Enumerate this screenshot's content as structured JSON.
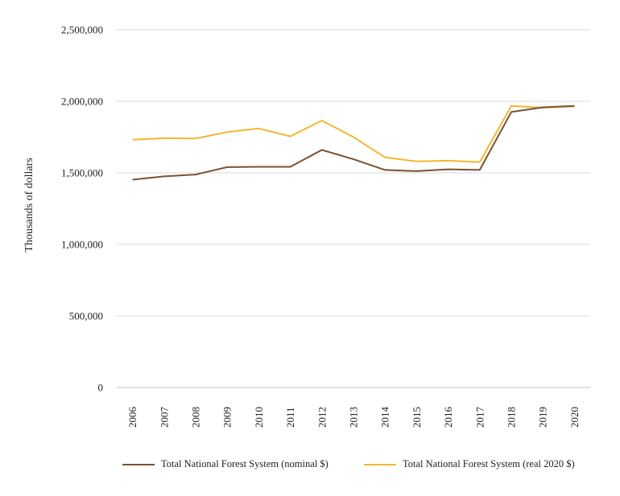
{
  "chart_data": {
    "type": "line",
    "title": "",
    "xlabel": "",
    "ylabel": "Thousands of dollars",
    "ylim": [
      0,
      2500000
    ],
    "yticks": [
      "0",
      "500,000",
      "1,000,000",
      "1,500,000",
      "2,000,000",
      "2,500,000"
    ],
    "ytick_values": [
      0,
      500000,
      1000000,
      1500000,
      2000000,
      2500000
    ],
    "grid": true,
    "legend_position": "bottom",
    "x": [
      "2006",
      "2007",
      "2008",
      "2009",
      "2010",
      "2011",
      "2012",
      "2013",
      "2014",
      "2015",
      "2016",
      "2017",
      "2018",
      "2019",
      "2020"
    ],
    "series": [
      {
        "name": "Total National Forest System (nominal $)",
        "color": "#7a5230",
        "values": [
          1452000,
          1475000,
          1488000,
          1540000,
          1542000,
          1542000,
          1660000,
          1595000,
          1520000,
          1512000,
          1525000,
          1520000,
          1925000,
          1958000,
          1968000
        ]
      },
      {
        "name": "Total National Forest System (real 2020 $)",
        "color": "#f2b731",
        "values": [
          1732000,
          1742000,
          1740000,
          1785000,
          1810000,
          1755000,
          1865000,
          1750000,
          1608000,
          1580000,
          1585000,
          1575000,
          1968000,
          1955000,
          1965000
        ]
      }
    ]
  }
}
